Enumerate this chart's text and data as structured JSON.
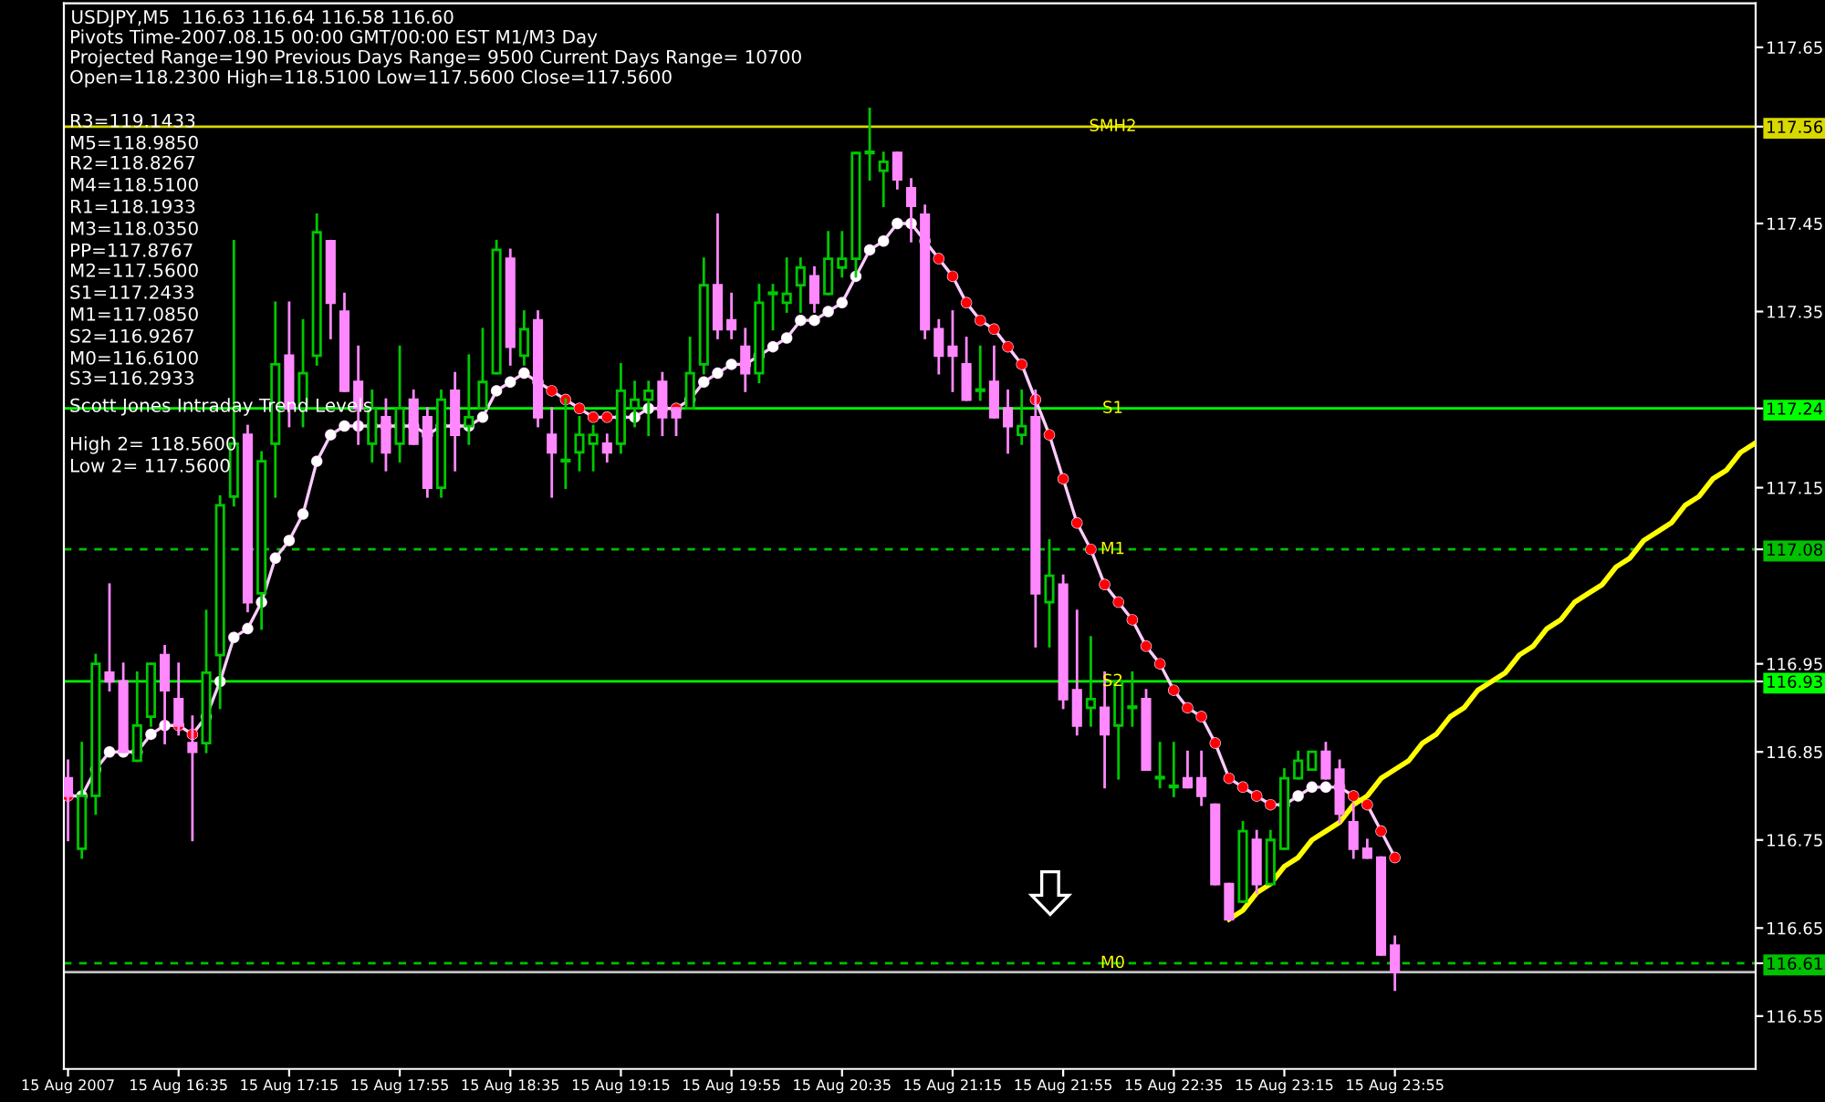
{
  "chart_data": {
    "type": "candlestick",
    "title": "USDJPY,M5  116.63 116.64 116.58 116.60",
    "annotations": [
      "Pivots Time-2007.08.15 00:00 GMT/00:00 EST M1/M3 Day",
      "Projected Range=190 Previous Days Range= 9500 Current Days Range= 10700",
      "Open=118.2300 High=118.5100 Low=117.5600 Close=117.5600",
      "R3=119.1433",
      "M5=118.9850",
      "R2=118.8267",
      "M4=118.5100",
      "R1=118.1933",
      "M3=118.0350",
      "PP=117.8767",
      "M2=117.5600",
      "S1=117.2433",
      "M1=117.0850",
      "S2=116.9267",
      "M0=116.6100",
      "S3=116.2933",
      "Scott Jones Intraday Trend Levels",
      "High 2= 118.5600",
      "Low 2= 117.5600"
    ],
    "categories": [
      "15 Aug 2007",
      null,
      null,
      null,
      null,
      null,
      null,
      null,
      "15 Aug 16:35",
      null,
      null,
      null,
      null,
      null,
      null,
      null,
      "15 Aug 17:15",
      null,
      null,
      null,
      null,
      null,
      null,
      null,
      "15 Aug 17:55",
      null,
      null,
      null,
      null,
      null,
      null,
      null,
      "15 Aug 18:35",
      null,
      null,
      null,
      null,
      null,
      null,
      null,
      "15 Aug 19:15",
      null,
      null,
      null,
      null,
      null,
      null,
      null,
      "15 Aug 19:55",
      null,
      null,
      null,
      null,
      null,
      null,
      null,
      "15 Aug 20:35",
      null,
      null,
      null,
      null,
      null,
      null,
      null,
      "15 Aug 21:15",
      null,
      null,
      null,
      null,
      null,
      null,
      null,
      "15 Aug 21:55",
      null,
      null,
      null,
      null,
      null,
      null,
      null,
      "15 Aug 22:35",
      null,
      null,
      null,
      null,
      null,
      null,
      null,
      "15 Aug 23:15",
      null,
      null,
      null,
      null,
      null,
      null,
      null,
      "15 Aug 23:55",
      null,
      null,
      null,
      null,
      null,
      null,
      null,
      null,
      null,
      null,
      null,
      null,
      null,
      null,
      null,
      null,
      null,
      null,
      null,
      null,
      null,
      null,
      null,
      null,
      null,
      null
    ],
    "ohlc": [
      [
        116.82,
        116.84,
        116.75,
        116.8
      ],
      [
        116.74,
        116.86,
        116.73,
        116.8
      ],
      [
        116.8,
        116.96,
        116.78,
        116.95
      ],
      [
        116.94,
        117.04,
        116.92,
        116.93
      ],
      [
        116.93,
        116.95,
        116.85,
        116.85
      ],
      [
        116.84,
        116.94,
        116.84,
        116.88
      ],
      [
        116.89,
        116.95,
        116.88,
        116.95
      ],
      [
        116.96,
        116.97,
        116.86,
        116.92
      ],
      [
        116.91,
        116.95,
        116.87,
        116.88
      ],
      [
        116.86,
        116.89,
        116.75,
        116.85
      ],
      [
        116.86,
        117.01,
        116.85,
        116.94
      ],
      [
        116.96,
        117.14,
        116.9,
        117.13
      ],
      [
        117.14,
        117.43,
        117.13,
        117.2
      ],
      [
        117.21,
        117.22,
        117.01,
        117.02
      ],
      [
        117.03,
        117.19,
        116.99,
        117.18
      ],
      [
        117.2,
        117.36,
        117.14,
        117.29
      ],
      [
        117.3,
        117.36,
        117.22,
        117.24
      ],
      [
        117.24,
        117.34,
        117.22,
        117.28
      ],
      [
        117.3,
        117.46,
        117.29,
        117.44
      ],
      [
        117.43,
        117.43,
        117.32,
        117.36
      ],
      [
        117.35,
        117.37,
        117.26,
        117.26
      ],
      [
        117.27,
        117.31,
        117.2,
        117.24
      ],
      [
        117.2,
        117.26,
        117.18,
        117.24
      ],
      [
        117.23,
        117.25,
        117.17,
        117.19
      ],
      [
        117.2,
        117.31,
        117.18,
        117.24
      ],
      [
        117.25,
        117.26,
        117.2,
        117.2
      ],
      [
        117.23,
        117.24,
        117.14,
        117.15
      ],
      [
        117.15,
        117.26,
        117.14,
        117.25
      ],
      [
        117.26,
        117.28,
        117.17,
        117.21
      ],
      [
        117.22,
        117.3,
        117.2,
        117.23
      ],
      [
        117.24,
        117.33,
        117.24,
        117.27
      ],
      [
        117.28,
        117.43,
        117.28,
        117.42
      ],
      [
        117.41,
        117.42,
        117.29,
        117.31
      ],
      [
        117.3,
        117.35,
        117.29,
        117.33
      ],
      [
        117.34,
        117.35,
        117.22,
        117.23
      ],
      [
        117.21,
        117.24,
        117.14,
        117.19
      ],
      [
        117.18,
        117.25,
        117.15,
        117.18
      ],
      [
        117.19,
        117.23,
        117.17,
        117.21
      ],
      [
        117.2,
        117.22,
        117.17,
        117.21
      ],
      [
        117.2,
        117.21,
        117.18,
        117.19
      ],
      [
        117.2,
        117.29,
        117.19,
        117.26
      ],
      [
        117.24,
        117.27,
        117.22,
        117.25
      ],
      [
        117.25,
        117.27,
        117.21,
        117.26
      ],
      [
        117.27,
        117.28,
        117.21,
        117.23
      ],
      [
        117.24,
        117.24,
        117.21,
        117.23
      ],
      [
        117.24,
        117.32,
        117.24,
        117.28
      ],
      [
        117.29,
        117.41,
        117.28,
        117.38
      ],
      [
        117.38,
        117.46,
        117.32,
        117.33
      ],
      [
        117.34,
        117.37,
        117.32,
        117.33
      ],
      [
        117.31,
        117.33,
        117.26,
        117.28
      ],
      [
        117.28,
        117.38,
        117.27,
        117.36
      ],
      [
        117.37,
        117.38,
        117.33,
        117.37
      ],
      [
        117.36,
        117.41,
        117.35,
        117.37
      ],
      [
        117.38,
        117.41,
        117.35,
        117.4
      ],
      [
        117.39,
        117.4,
        117.35,
        117.36
      ],
      [
        117.37,
        117.44,
        117.37,
        117.41
      ],
      [
        117.4,
        117.44,
        117.39,
        117.41
      ],
      [
        117.41,
        117.53,
        117.39,
        117.53
      ],
      [
        117.53,
        117.58,
        117.5,
        117.53
      ],
      [
        117.51,
        117.53,
        117.47,
        117.52
      ],
      [
        117.53,
        117.53,
        117.49,
        117.5
      ],
      [
        117.49,
        117.5,
        117.43,
        117.47
      ],
      [
        117.46,
        117.47,
        117.32,
        117.33
      ],
      [
        117.33,
        117.34,
        117.28,
        117.3
      ],
      [
        117.31,
        117.35,
        117.26,
        117.3
      ],
      [
        117.29,
        117.32,
        117.25,
        117.25
      ],
      [
        117.26,
        117.31,
        117.25,
        117.26
      ],
      [
        117.27,
        117.31,
        117.23,
        117.23
      ],
      [
        117.24,
        117.26,
        117.19,
        117.22
      ],
      [
        117.21,
        117.26,
        117.2,
        117.22
      ],
      [
        117.23,
        117.26,
        116.97,
        117.03
      ],
      [
        117.02,
        117.09,
        116.97,
        117.05
      ],
      [
        117.04,
        117.05,
        116.9,
        116.91
      ],
      [
        116.92,
        117.01,
        116.87,
        116.88
      ],
      [
        116.9,
        116.98,
        116.88,
        116.91
      ],
      [
        116.9,
        116.94,
        116.81,
        116.87
      ],
      [
        116.88,
        116.93,
        116.82,
        116.93
      ],
      [
        116.9,
        116.94,
        116.88,
        116.9
      ],
      [
        116.91,
        116.92,
        116.83,
        116.83
      ],
      [
        116.82,
        116.86,
        116.81,
        116.82
      ],
      [
        116.81,
        116.86,
        116.8,
        116.81
      ],
      [
        116.82,
        116.85,
        116.81,
        116.81
      ],
      [
        116.82,
        116.85,
        116.79,
        116.8
      ],
      [
        116.79,
        116.79,
        116.7,
        116.7
      ],
      [
        116.7,
        116.7,
        116.66,
        116.66
      ],
      [
        116.68,
        116.77,
        116.68,
        116.76
      ],
      [
        116.75,
        116.76,
        116.69,
        116.7
      ],
      [
        116.7,
        116.76,
        116.7,
        116.75
      ],
      [
        116.74,
        116.83,
        116.74,
        116.82
      ],
      [
        116.82,
        116.85,
        116.82,
        116.84
      ],
      [
        116.83,
        116.85,
        116.83,
        116.85
      ],
      [
        116.85,
        116.86,
        116.82,
        116.82
      ],
      [
        116.83,
        116.84,
        116.77,
        116.78
      ],
      [
        116.77,
        116.79,
        116.73,
        116.74
      ],
      [
        116.74,
        116.75,
        116.73,
        116.73
      ],
      [
        116.73,
        116.73,
        116.62,
        116.62
      ],
      [
        116.63,
        116.64,
        116.58,
        116.6
      ],
      null,
      null,
      null,
      null,
      null,
      null,
      null,
      null,
      null,
      null,
      null,
      null,
      null,
      null,
      null,
      null,
      null,
      null,
      null,
      null,
      null,
      null,
      null,
      null,
      null,
      null
    ],
    "colors": [
      "#ff88ff",
      "#00c800",
      "#00c800",
      "#ff88ff",
      "#ff88ff",
      "#00c800",
      "#00c800",
      "#ff88ff",
      "#ff88ff",
      "#ff88ff",
      "#00c800",
      "#00c800",
      "#00c800",
      "#ff88ff",
      "#00c800",
      "#00c800",
      "#ff88ff",
      "#00c800",
      "#00c800",
      "#ff88ff",
      "#ff88ff",
      "#ff88ff",
      "#00c800",
      "#ff88ff",
      "#00c800",
      "#ff88ff",
      "#ff88ff",
      "#00c800",
      "#ff88ff",
      "#00c800",
      "#00c800",
      "#00c800",
      "#ff88ff",
      "#00c800",
      "#ff88ff",
      "#ff88ff",
      "#00c800",
      "#00c800",
      "#00c800",
      "#ff88ff",
      "#00c800",
      "#00c800",
      "#00c800",
      "#ff88ff",
      "#ff88ff",
      "#00c800",
      "#00c800",
      "#ff88ff",
      "#ff88ff",
      "#ff88ff",
      "#00c800",
      "#00c800",
      "#00c800",
      "#00c800",
      "#ff88ff",
      "#00c800",
      "#00c800",
      "#00c800",
      "#00c800",
      "#00c800",
      "#ff88ff",
      "#ff88ff",
      "#ff88ff",
      "#ff88ff",
      "#ff88ff",
      "#ff88ff",
      "#00c800",
      "#ff88ff",
      "#ff88ff",
      "#00c800",
      "#ff88ff",
      "#00c800",
      "#ff88ff",
      "#ff88ff",
      "#00c800",
      "#ff88ff",
      "#00c800",
      "#00c800",
      "#ff88ff",
      "#00c800",
      "#00c800",
      "#ff88ff",
      "#ff88ff",
      "#ff88ff",
      "#ff88ff",
      "#00c800",
      "#ff88ff",
      "#00c800",
      "#00c800",
      "#00c800",
      "#00c800",
      "#ff88ff",
      "#ff88ff",
      "#ff88ff",
      "#ff88ff",
      "#ff88ff",
      "#ff88ff",
      null,
      null,
      null,
      null,
      null,
      null,
      null,
      null,
      null,
      null,
      null,
      null,
      null,
      null,
      null,
      null,
      null,
      null,
      null,
      null,
      null,
      null,
      null,
      null,
      null,
      null
    ],
    "series": [
      {
        "type": "line",
        "color": "#ffccff",
        "marker": "circle",
        "values": [
          116.8,
          116.8,
          116.83,
          116.85,
          116.85,
          116.85,
          116.87,
          116.88,
          116.88,
          116.87,
          116.89,
          116.93,
          116.98,
          116.99,
          117.02,
          117.07,
          117.09,
          117.12,
          117.18,
          117.21,
          117.22,
          117.22,
          117.22,
          117.22,
          117.22,
          117.22,
          117.21,
          117.22,
          117.22,
          117.22,
          117.23,
          117.26,
          117.27,
          117.28,
          117.27,
          117.26,
          117.25,
          117.24,
          117.23,
          117.23,
          117.23,
          117.23,
          117.24,
          117.24,
          117.24,
          117.25,
          117.27,
          117.28,
          117.29,
          117.29,
          117.3,
          117.31,
          117.32,
          117.34,
          117.34,
          117.35,
          117.36,
          117.39,
          117.42,
          117.43,
          117.45,
          117.45,
          117.43,
          117.41,
          117.39,
          117.36,
          117.34,
          117.33,
          117.31,
          117.29,
          117.25,
          117.21,
          117.16,
          117.11,
          117.08,
          117.04,
          117.02,
          117.0,
          116.97,
          116.95,
          116.92,
          116.9,
          116.89,
          116.86,
          116.82,
          116.81,
          116.8,
          116.79,
          116.79,
          116.8,
          116.81,
          116.81,
          116.81,
          116.8,
          116.79,
          116.76,
          116.73,
          null,
          null,
          null,
          null,
          null,
          null,
          null,
          null,
          null,
          null,
          null,
          null,
          null,
          null,
          null,
          null,
          null,
          null,
          null,
          null,
          null,
          null,
          null,
          null,
          null,
          null
        ],
        "colors": [
          "#ff0000",
          "#ffffff",
          "#ffffff",
          "#ffffff",
          "#ffffff",
          "#ffffff",
          "#ffffff",
          "#ffffff",
          "#ff0000",
          "#ff0000",
          "#ffffff",
          "#ffffff",
          "#ffffff",
          "#ffffff",
          "#ffffff",
          "#ffffff",
          "#ffffff",
          "#ffffff",
          "#ffffff",
          "#ffffff",
          "#ffffff",
          "#ffffff",
          "#ffffff",
          "#ff0000",
          "#ffffff",
          "#ffffff",
          "#ff0000",
          "#ffffff",
          "#ffffff",
          "#ffffff",
          "#ffffff",
          "#ffffff",
          "#ffffff",
          "#ffffff",
          "#ff0000",
          "#ff0000",
          "#ff0000",
          "#ff0000",
          "#ff0000",
          "#ff0000",
          "#ffffff",
          "#ffffff",
          "#ffffff",
          "#ff0000",
          "#ff0000",
          "#ffffff",
          "#ffffff",
          "#ffffff",
          "#ffffff",
          "#ff0000",
          "#ffffff",
          "#ffffff",
          "#ffffff",
          "#ffffff",
          "#ffffff",
          "#ffffff",
          "#ffffff",
          "#ffffff",
          "#ffffff",
          "#ffffff",
          "#ffffff",
          "#ffffff",
          "#ff0000",
          "#ff0000",
          "#ff0000",
          "#ff0000",
          "#ff0000",
          "#ff0000",
          "#ff0000",
          "#ff0000",
          "#ff0000",
          "#ff0000",
          "#ff0000",
          "#ff0000",
          "#ff0000",
          "#ff0000",
          "#ff0000",
          "#ff0000",
          "#ff0000",
          "#ff0000",
          "#ff0000",
          "#ff0000",
          "#ff0000",
          "#ff0000",
          "#ff0000",
          "#ff0000",
          "#ff0000",
          "#ff0000",
          "#ffffff",
          "#ffffff",
          "#ffffff",
          "#ffffff",
          "#ff0000",
          "#ff0000",
          "#ff0000",
          "#ff0000",
          "#ff0000",
          null,
          null,
          null,
          null,
          null,
          null,
          null,
          null,
          null,
          null,
          null,
          null,
          null,
          null,
          null,
          null,
          null,
          null,
          null,
          null,
          null,
          null,
          null,
          null,
          null,
          null
        ]
      },
      {
        "type": "line",
        "color": "#ffff00",
        "values": [
          null,
          null,
          null,
          null,
          null,
          null,
          null,
          null,
          null,
          null,
          null,
          null,
          null,
          null,
          null,
          null,
          null,
          null,
          null,
          null,
          null,
          null,
          null,
          null,
          null,
          null,
          null,
          null,
          null,
          null,
          null,
          null,
          null,
          null,
          null,
          null,
          null,
          null,
          null,
          null,
          null,
          null,
          null,
          null,
          null,
          null,
          null,
          null,
          null,
          null,
          null,
          null,
          null,
          null,
          null,
          null,
          null,
          null,
          null,
          null,
          null,
          null,
          null,
          null,
          null,
          null,
          null,
          null,
          null,
          null,
          null,
          null,
          null,
          null,
          null,
          null,
          null,
          null,
          null,
          null,
          null,
          null,
          null,
          null,
          116.66,
          116.67,
          116.69,
          116.7,
          116.72,
          116.73,
          116.75,
          116.76,
          116.77,
          116.79,
          116.8,
          116.82,
          116.83,
          116.84,
          116.86,
          116.87,
          116.89,
          116.9,
          116.92,
          116.93,
          116.94,
          116.96,
          116.97,
          116.99,
          117.0,
          117.02,
          117.03,
          117.04,
          117.06,
          117.07,
          117.09,
          117.1,
          117.11,
          117.13,
          117.14,
          117.16,
          117.17,
          117.19,
          117.2
        ]
      }
    ],
    "ref_lines": [
      {
        "axis": "y",
        "value": 117.56,
        "label": "SMH2",
        "color": "#d8d800",
        "line_style": "solid"
      },
      {
        "axis": "y",
        "value": 117.24,
        "label": "S1",
        "color": "#00ff00",
        "line_style": "solid"
      },
      {
        "axis": "y",
        "value": 117.08,
        "label": "M1",
        "color": "#00c000",
        "line_style": "dashed"
      },
      {
        "axis": "y",
        "value": 116.93,
        "label": "S2",
        "color": "#00ff00",
        "line_style": "solid"
      },
      {
        "axis": "y",
        "value": 116.61,
        "label": "M0",
        "color": "#00c000",
        "line_style": "dashed"
      },
      {
        "axis": "y",
        "value": 116.6,
        "label": null,
        "color": "#c0c0c0",
        "line_style": "solid"
      }
    ],
    "ylim": [
      116.49,
      117.7
    ],
    "yticks": [
      {
        "value": 117.65,
        "label": "117.65"
      },
      {
        "value": 117.56,
        "label": "117.56"
      },
      {
        "value": 117.45,
        "label": "117.45"
      },
      {
        "value": 117.35,
        "label": "117.35"
      },
      {
        "value": 117.24,
        "label": "117.24"
      },
      {
        "value": 117.15,
        "label": "117.15"
      },
      {
        "value": 117.08,
        "label": "117.08"
      },
      {
        "value": 116.95,
        "label": "116.95"
      },
      {
        "value": 116.93,
        "label": "116.93"
      },
      {
        "value": 116.85,
        "label": "116.85"
      },
      {
        "value": 116.75,
        "label": "116.75"
      },
      {
        "value": 116.65,
        "label": "116.65"
      },
      {
        "value": 116.61,
        "label": "116.61"
      },
      {
        "value": 116.55,
        "label": "116.55"
      }
    ],
    "grid": false,
    "legend": false
  }
}
